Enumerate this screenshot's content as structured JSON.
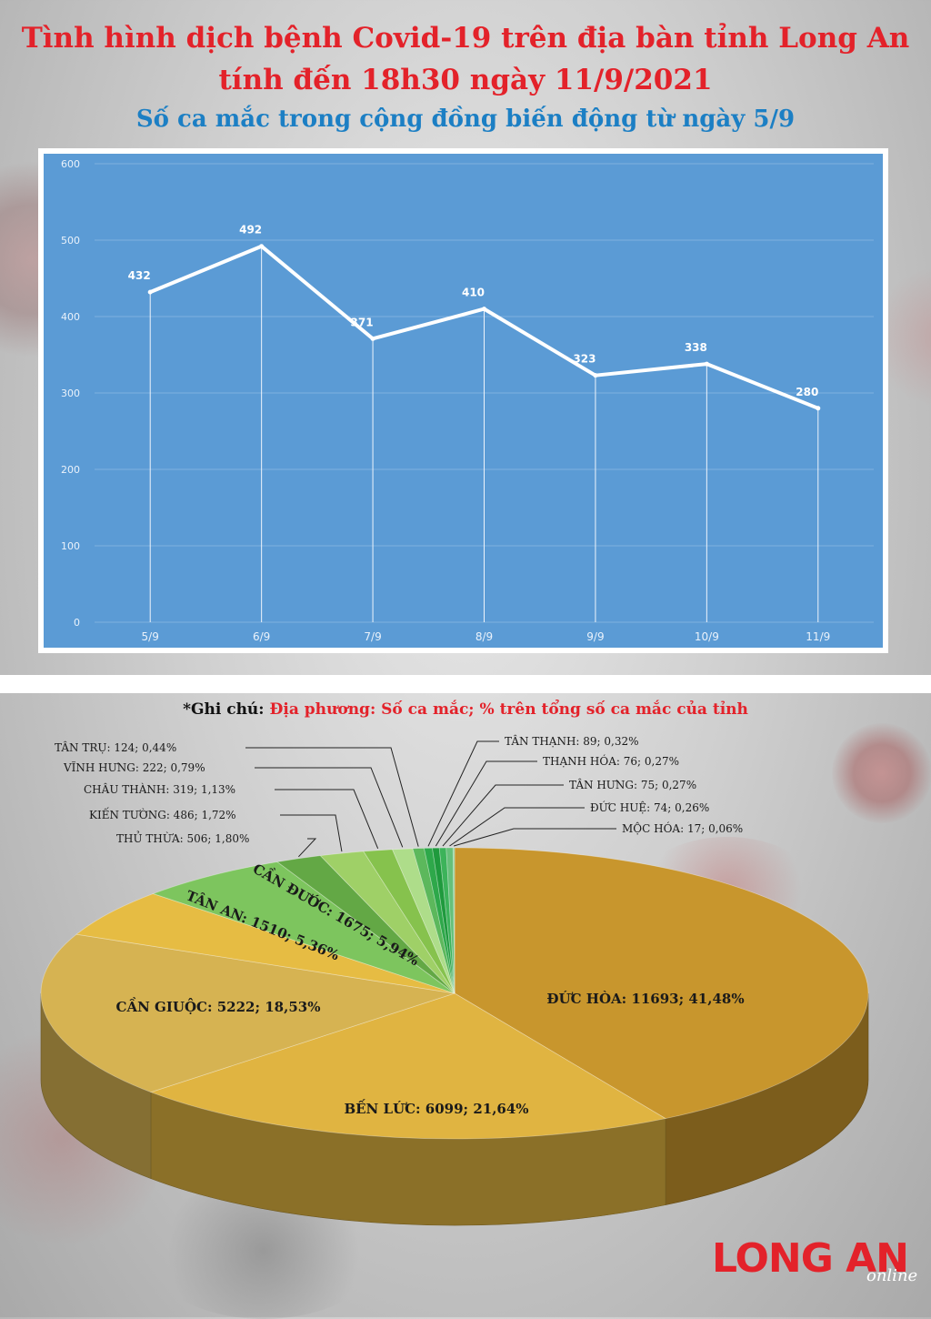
{
  "header": {
    "title_line1": "Tình hình dịch bệnh Covid-19 trên địa bàn tỉnh Long An",
    "title_line2": "tính đến 18h30 ngày 11/9/2021",
    "subtitle": "Số ca mắc trong cộng đồng biến động từ ngày 5/9"
  },
  "note": {
    "label": "*Ghi chú:",
    "text": "Địa phương: Số ca mắc; % trên tổng số ca mắc của tỉnh"
  },
  "logo": {
    "main": "LONG AN",
    "sub": "online"
  },
  "colors": {
    "title_red": "#e3222a",
    "subtitle_blue": "#1c7fc4",
    "line_chart_bg": "#5b9bd5",
    "pie_gold": "#cc9a2e",
    "pie_light_gold": "#ddb84a",
    "pie_green": "#72c05a"
  },
  "chart_data": [
    {
      "type": "line",
      "title": "Số ca mắc trong cộng đồng biến động từ ngày 5/9",
      "categories": [
        "5/9",
        "6/9",
        "7/9",
        "8/9",
        "9/9",
        "10/9",
        "11/9"
      ],
      "values": [
        432,
        492,
        371,
        410,
        323,
        338,
        280
      ],
      "data_labels": [
        "432",
        "492",
        "371",
        "410",
        "323",
        "338",
        "280"
      ],
      "y_ticks": [
        "0",
        "100",
        "200",
        "300",
        "400",
        "500",
        "600"
      ],
      "ylim": [
        0,
        600
      ],
      "grid": true,
      "drop_lines": true
    },
    {
      "type": "pie",
      "style": "3d",
      "slices": [
        {
          "label": "ĐỨC HÒA: 11693; 41,48%",
          "value": 11693,
          "percent": 41.48,
          "color": "#c8962d"
        },
        {
          "label": "BẾN LỨC: 6099; 21,64%",
          "value": 6099,
          "percent": 21.64,
          "color": "#e0b441"
        },
        {
          "label": "CẦN GIUỘC: 5222; 18,53%",
          "value": 5222,
          "percent": 18.53,
          "color": "#d6b352"
        },
        {
          "label": "TÂN AN: 1510; 5,36%",
          "value": 1510,
          "percent": 5.36,
          "color": "#e6bc43"
        },
        {
          "label": "CẦN ĐƯỚC: 1675; 5,94%",
          "value": 1675,
          "percent": 5.94,
          "color": "#7dc55e"
        },
        {
          "label": "THỦ THỪA: 506; 1,80%",
          "value": 506,
          "percent": 1.8,
          "color": "#63a845"
        },
        {
          "label": "KIẾN TƯỜNG: 486; 1,72%",
          "value": 486,
          "percent": 1.72,
          "color": "#9fd067"
        },
        {
          "label": "CHÂU THÀNH:  319; 1,13%",
          "value": 319,
          "percent": 1.13,
          "color": "#86c24d"
        },
        {
          "label": "VĨNH HƯNG: 222; 0,79%",
          "value": 222,
          "percent": 0.79,
          "color": "#aedd8a"
        },
        {
          "label": "TÂN TRỤ: 124; 0,44%",
          "value": 124,
          "percent": 0.44,
          "color": "#5cb85c"
        },
        {
          "label": "TÂN THẠNH: 89; 0,32%",
          "value": 89,
          "percent": 0.32,
          "color": "#2ea84a"
        },
        {
          "label": "THẠNH HÓA: 76; 0,27%",
          "value": 76,
          "percent": 0.27,
          "color": "#1f9a3d"
        },
        {
          "label": "TÂN HƯNG: 75; 0,27%",
          "value": 75,
          "percent": 0.27,
          "color": "#3cb35a"
        },
        {
          "label": "ĐỨC HUỆ: 74; 0,26%",
          "value": 74,
          "percent": 0.26,
          "color": "#66c07a"
        },
        {
          "label": "MỘC HÓA: 17; 0,06%",
          "value": 17,
          "percent": 0.06,
          "color": "#8fd19a"
        }
      ]
    }
  ]
}
